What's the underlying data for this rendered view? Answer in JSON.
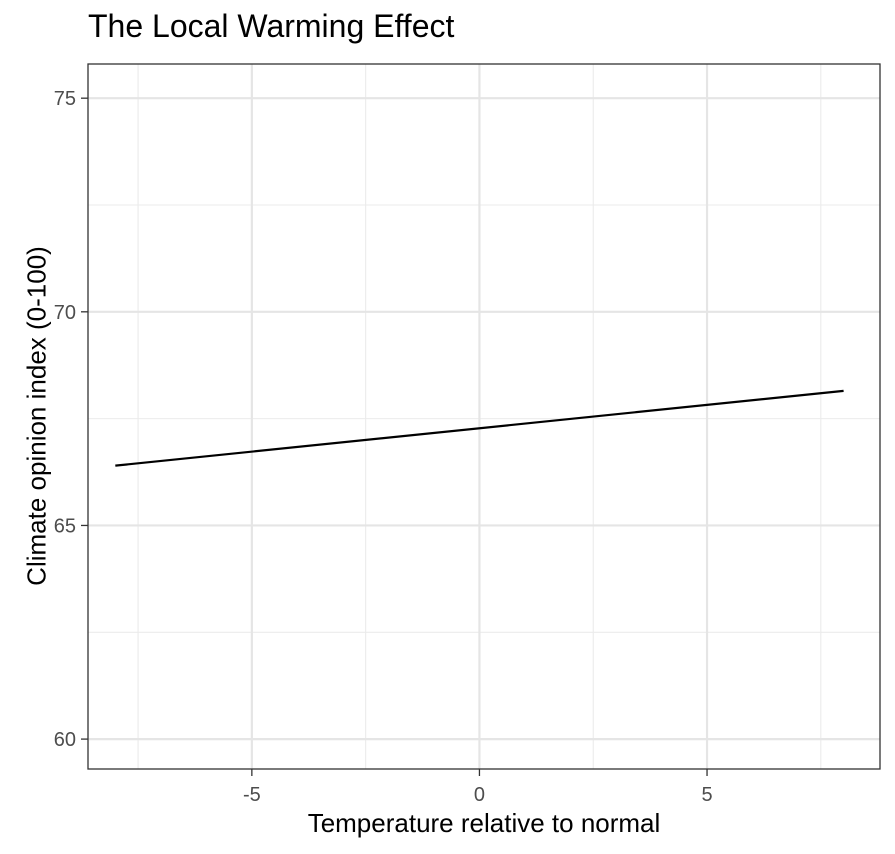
{
  "chart_data": {
    "type": "line",
    "title": "The Local Warming Effect",
    "xlabel": "Temperature relative to normal",
    "ylabel": "Climate opinion index (0-100)",
    "xlim": [
      -8.6,
      8.8
    ],
    "ylim": [
      59.3,
      75.8
    ],
    "x_ticks": [
      -5,
      0,
      5
    ],
    "x_tick_labels": [
      "-5",
      "0",
      "5"
    ],
    "y_ticks": [
      60,
      65,
      70,
      75
    ],
    "y_tick_labels": [
      "60",
      "65",
      "70",
      "75"
    ],
    "x_minor_ticks": [
      -7.5,
      -2.5,
      2.5,
      7.5
    ],
    "y_minor_ticks": [
      62.5,
      67.5,
      72.5
    ],
    "grid": true,
    "series": [
      {
        "x": [
          -8,
          8
        ],
        "y": [
          66.4,
          68.15
        ],
        "color": "#000000"
      }
    ]
  }
}
